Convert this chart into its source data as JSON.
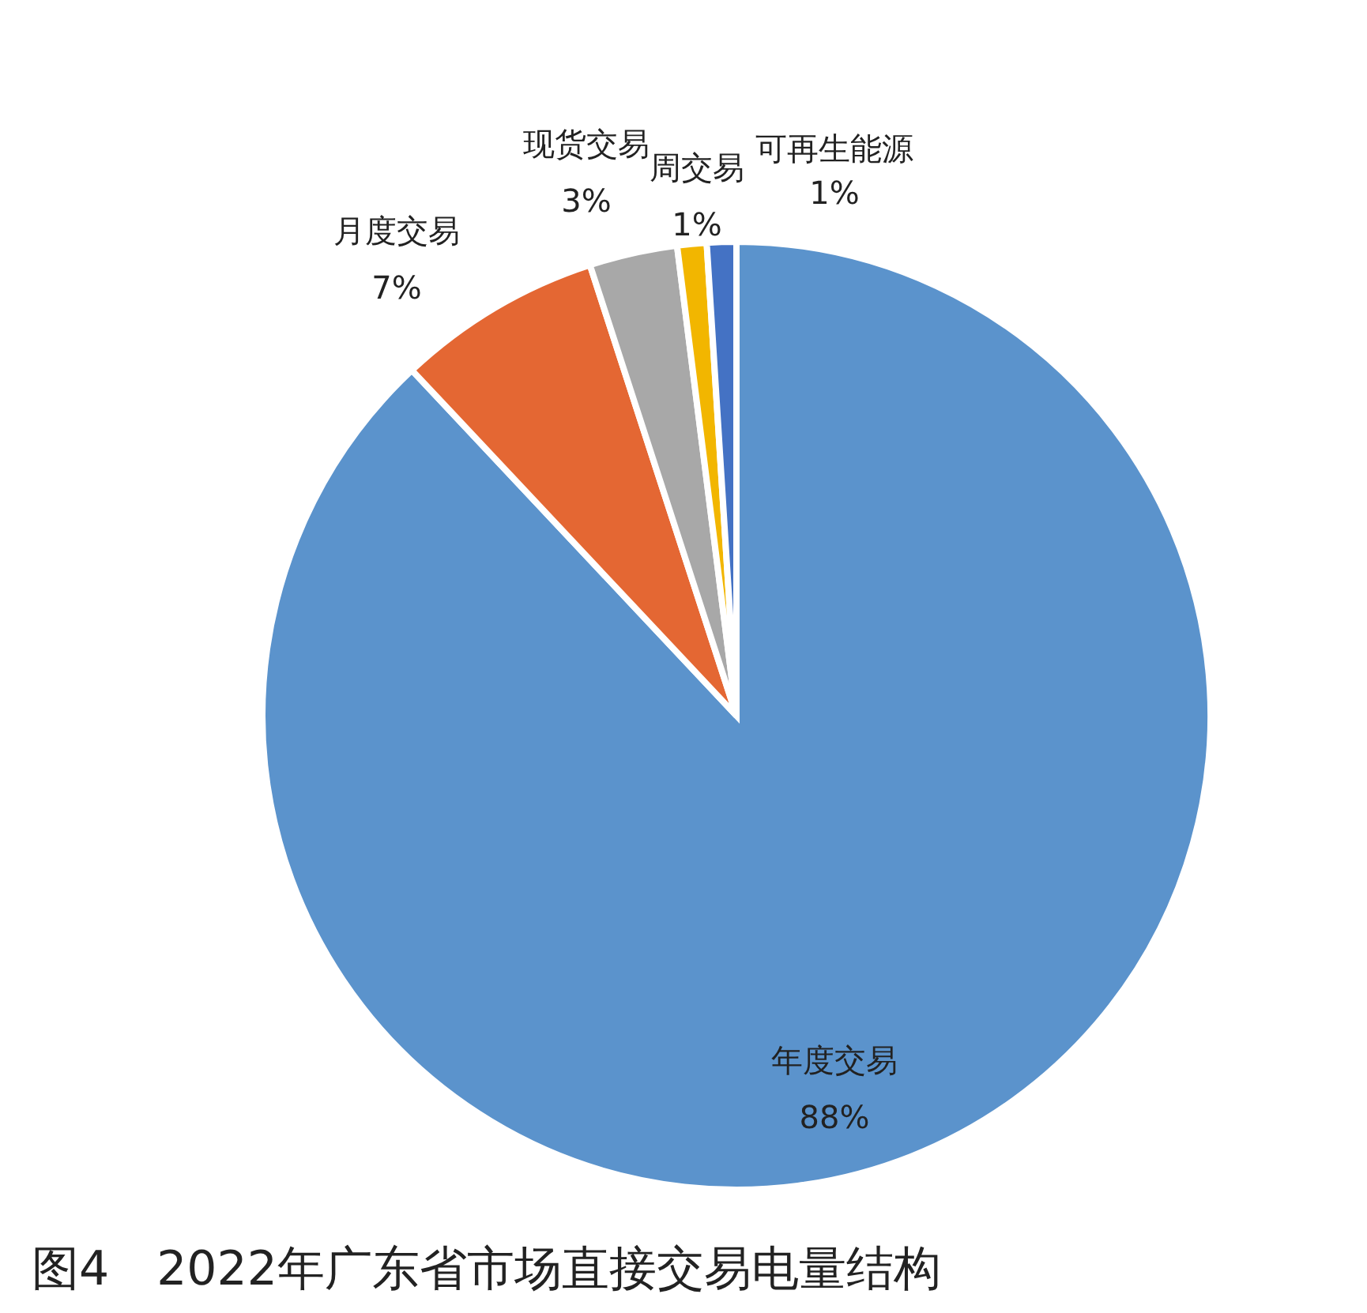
{
  "chart_data": {
    "type": "pie",
    "title": "图4　2022年广东省市场直接交易电量结构",
    "categories": [
      "年度交易",
      "月度交易",
      "现货交易",
      "周交易",
      "可再生能源"
    ],
    "values": [
      88,
      7,
      3,
      1,
      1
    ],
    "value_labels": [
      "88%",
      "7%",
      "3%",
      "1%",
      "1%"
    ],
    "colors": [
      "#5b93cc",
      "#e46733",
      "#a8a8a8",
      "#f2b600",
      "#4472c4"
    ],
    "legend": false
  }
}
